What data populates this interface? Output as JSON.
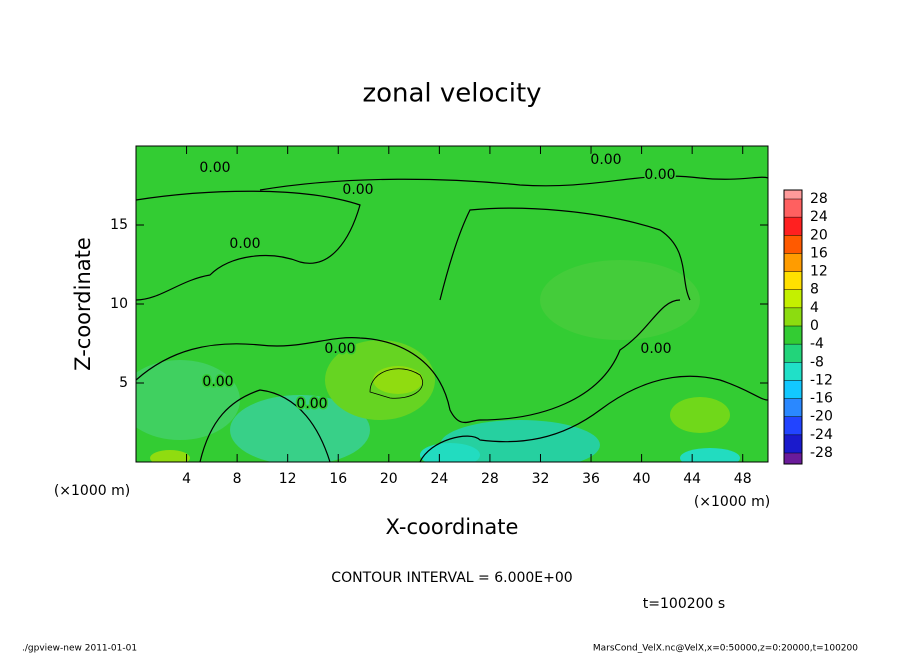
{
  "chart_data": {
    "type": "contour",
    "title": "zonal velocity",
    "x_label": "X-coordinate",
    "y_label": "Z-coordinate",
    "x_unit": "(×1000 m)",
    "y_unit": "(×1000 m)",
    "xlim": [
      0,
      50
    ],
    "ylim": [
      0,
      20
    ],
    "xticks": [
      4,
      8,
      12,
      16,
      20,
      24,
      28,
      32,
      36,
      40,
      44,
      48
    ],
    "yticks": [
      5,
      10,
      15
    ],
    "contour_label": "0.00",
    "contour_interval_text": "CONTOUR INTERVAL = 6.000E+00",
    "time_text": "t=100200 s",
    "footer_left": "./gpview-new  2011-01-01",
    "footer_right": "MarsCond_VelX.nc@VelX,x=0:50000,z=0:20000,t=100200",
    "levels": [
      -28,
      -24,
      -20,
      -16,
      -12,
      -8,
      -4,
      0,
      4,
      8,
      12,
      16,
      20,
      24,
      28
    ],
    "colors": [
      "#6a1b9a",
      "#1a1acc",
      "#2244ff",
      "#2a88ff",
      "#12c8ff",
      "#20e0c8",
      "#22d47a",
      "#33cc33",
      "#8cdc10",
      "#c4f000",
      "#ffe000",
      "#ff9c00",
      "#ff5a00",
      "#ff2020",
      "#ff6060",
      "#ff9a9a"
    ]
  }
}
